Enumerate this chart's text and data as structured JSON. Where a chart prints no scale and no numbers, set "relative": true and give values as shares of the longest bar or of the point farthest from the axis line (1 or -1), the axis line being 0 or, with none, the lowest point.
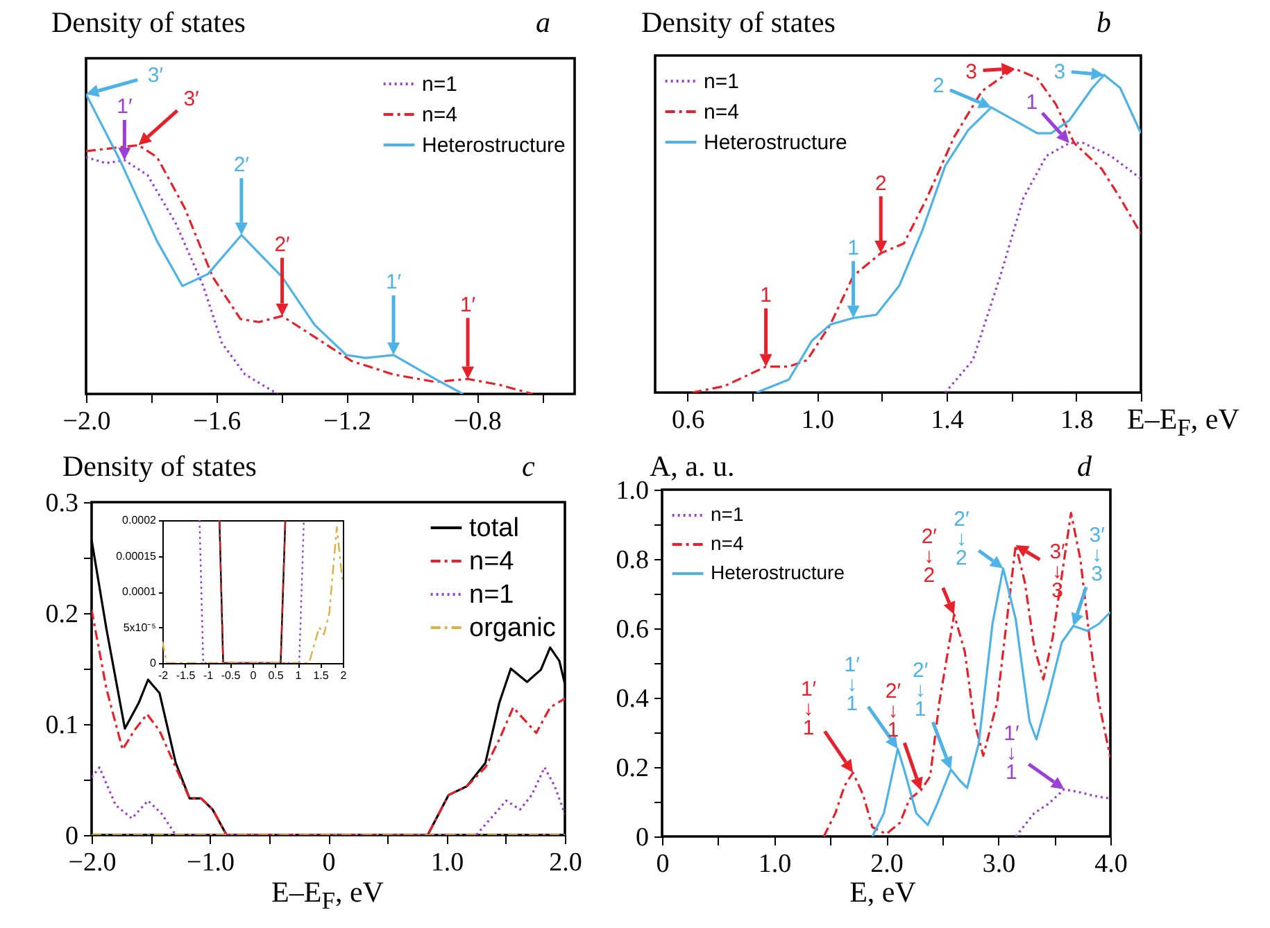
{
  "chart_data": [
    {
      "type": "line",
      "title": "a",
      "ylabel": "Density of states",
      "relative": true,
      "legend": "top right",
      "xlim": [
        -2,
        -0.5
      ],
      "xticks": [
        {
          "value": -2,
          "label": "−2.0"
        },
        {
          "value": -1.8,
          "label": null
        },
        {
          "value": -1.6,
          "label": "−1.6"
        },
        {
          "value": -1.4,
          "label": null
        },
        {
          "value": -1.2,
          "label": "−1.2"
        },
        {
          "value": -1,
          "label": null
        },
        {
          "value": -0.8,
          "label": "−0.8"
        },
        {
          "value": -0.6,
          "label": null
        }
      ],
      "series": [
        {
          "name": "n=1",
          "color": "#9b3fd6",
          "line_style": "dotted",
          "x": [
            -2.0,
            -1.939,
            -1.882,
            -1.811,
            -1.725,
            -1.64,
            -1.583,
            -1.512,
            -1.412
          ],
          "values": [
            0.79,
            0.77,
            0.78,
            0.73,
            0.57,
            0.36,
            0.17,
            0.065,
            0
          ]
        },
        {
          "name": "n=4",
          "color": "#e8202a",
          "line_style": "dashed",
          "x": [
            -2.0,
            -1.839,
            -1.782,
            -1.697,
            -1.611,
            -1.526,
            -1.469,
            -1.398,
            -1.298,
            -1.185,
            -1.056,
            -0.928,
            -0.828,
            -0.729,
            -0.629
          ],
          "values": [
            0.81,
            0.83,
            0.79,
            0.62,
            0.39,
            0.25,
            0.24,
            0.26,
            0.19,
            0.11,
            0.065,
            0.04,
            0.05,
            0.03,
            0
          ]
        },
        {
          "name": "Heterostructure",
          "color": "#4db3e6",
          "line_style": "solid",
          "x": [
            -2.0,
            -1.896,
            -1.782,
            -1.704,
            -1.626,
            -1.523,
            -1.398,
            -1.298,
            -1.201,
            -1.142,
            -1.056,
            -0.928,
            -0.843
          ],
          "values": [
            1.0,
            0.78,
            0.51,
            0.36,
            0.4,
            0.53,
            0.39,
            0.23,
            0.13,
            0.12,
            0.13,
            0.05,
            0
          ]
        }
      ],
      "annotations": [
        {
          "text": "3′",
          "x": -2.0,
          "y": 1.0
        },
        {
          "text": "1′",
          "x": -1.882,
          "y": 0.78
        },
        {
          "text": "3′",
          "x": -1.839,
          "y": 0.83
        },
        {
          "text": "2′",
          "x": -1.523,
          "y": 0.53
        },
        {
          "text": "2′",
          "x": -1.398,
          "y": 0.26
        },
        {
          "text": "1′",
          "x": -1.056,
          "y": 0.13
        },
        {
          "text": "1′",
          "x": -0.828,
          "y": 0.05
        }
      ]
    },
    {
      "type": "line",
      "title": "b",
      "ylabel": "Density of states",
      "xlabel": "E–E$_{F}$, eV",
      "relative": true,
      "legend": "top left",
      "xlim": [
        0.5,
        2.0
      ],
      "xticks": [
        {
          "value": 0.6,
          "label": "0.6"
        },
        {
          "value": 0.8,
          "label": null
        },
        {
          "value": 1,
          "label": "1.0"
        },
        {
          "value": 1.2,
          "label": null
        },
        {
          "value": 1.4,
          "label": "1.4"
        },
        {
          "value": 1.6,
          "label": null
        },
        {
          "value": 1.8,
          "label": "1.8"
        },
        {
          "value": 2,
          "label": null
        }
      ],
      "series": [
        {
          "name": "n=1",
          "color": "#9b3fd6",
          "line_style": "dotted",
          "x": [
            1.396,
            1.481,
            1.566,
            1.637,
            1.708,
            1.779,
            1.822,
            1.907,
            2.0
          ],
          "values": [
            0,
            0.1,
            0.36,
            0.6,
            0.73,
            0.77,
            0.77,
            0.73,
            0.66
          ]
        },
        {
          "name": "n=4",
          "color": "#e8202a",
          "line_style": "dashed",
          "x": [
            0.614,
            0.714,
            0.842,
            0.913,
            0.969,
            1.041,
            1.112,
            1.197,
            1.268,
            1.339,
            1.424,
            1.509,
            1.609,
            1.68,
            1.737,
            1.794,
            1.879,
            1.936,
            2.0
          ],
          "values": [
            0,
            0.02,
            0.08,
            0.08,
            0.1,
            0.21,
            0.36,
            0.43,
            0.46,
            0.6,
            0.79,
            0.93,
            1.0,
            0.97,
            0.89,
            0.77,
            0.69,
            0.6,
            0.49
          ]
        },
        {
          "name": "Heterostructure",
          "color": "#4db3e6",
          "line_style": "solid",
          "x": [
            0.813,
            0.913,
            0.984,
            1.041,
            1.112,
            1.183,
            1.254,
            1.325,
            1.396,
            1.467,
            1.538,
            1.609,
            1.68,
            1.723,
            1.779,
            1.85,
            1.886,
            1.936,
            2.0
          ],
          "values": [
            0,
            0.04,
            0.16,
            0.21,
            0.23,
            0.24,
            0.33,
            0.5,
            0.7,
            0.81,
            0.88,
            0.84,
            0.8,
            0.8,
            0.84,
            0.94,
            0.98,
            0.94,
            0.8
          ]
        }
      ],
      "annotations": [
        {
          "text": "1",
          "x": 0.842,
          "y": 0.08
        },
        {
          "text": "1",
          "x": 1.112,
          "y": 0.23
        },
        {
          "text": "2",
          "x": 1.197,
          "y": 0.43
        },
        {
          "text": "2",
          "x": 1.538,
          "y": 0.88
        },
        {
          "text": "3",
          "x": 1.609,
          "y": 1.0
        },
        {
          "text": "1",
          "x": 1.779,
          "y": 0.77
        },
        {
          "text": "3",
          "x": 1.886,
          "y": 0.98
        }
      ]
    },
    {
      "type": "line",
      "title": "c",
      "ylabel": "Density of states",
      "xlabel": "E–E$_{F}$, eV",
      "legend": "top right",
      "xlim": [
        -2,
        2
      ],
      "xticks": [
        {
          "value": -2,
          "label": "−2.0"
        },
        {
          "value": -1.5,
          "label": null
        },
        {
          "value": -1,
          "label": "−1.0"
        },
        {
          "value": -0.5,
          "label": null
        },
        0,
        {
          "value": 0.5,
          "label": null
        },
        {
          "value": 1,
          "label": "1.0"
        },
        {
          "value": 1.5,
          "label": null
        },
        {
          "value": 2,
          "label": "2.0"
        }
      ],
      "ylim": [
        0,
        0.3
      ],
      "yticks": [
        0,
        {
          "value": 0.05,
          "label": null
        },
        0.1,
        {
          "value": 0.15,
          "label": null
        },
        0.2,
        {
          "value": 0.25,
          "label": null
        },
        0.3
      ],
      "series": [
        {
          "name": "total",
          "color": "#000000",
          "line_style": "solid",
          "x": [
            -2.0,
            -1.875,
            -1.719,
            -1.602,
            -1.523,
            -1.426,
            -1.289,
            -1.172,
            -1.074,
            -0.977,
            -0.859,
            0.84,
            1.016,
            1.172,
            1.328,
            1.445,
            1.543,
            1.68,
            1.797,
            1.875,
            1.953,
            2.0
          ],
          "values": [
            0.266,
            0.186,
            0.096,
            0.119,
            0.14,
            0.128,
            0.065,
            0.033,
            0.033,
            0.023,
            0,
            0,
            0.036,
            0.044,
            0.065,
            0.119,
            0.15,
            0.138,
            0.149,
            0.169,
            0.157,
            0.136
          ]
        },
        {
          "name": "n=4",
          "color": "#e8202a",
          "line_style": "dashed",
          "x": [
            -2.0,
            -1.875,
            -1.738,
            -1.641,
            -1.531,
            -1.426,
            -1.289,
            -1.172,
            -1.074,
            -0.977,
            -0.859,
            0.84,
            1.016,
            1.172,
            1.328,
            1.445,
            1.563,
            1.758,
            1.875,
            2.0
          ],
          "values": [
            0.203,
            0.132,
            0.077,
            0.094,
            0.109,
            0.094,
            0.061,
            0.033,
            0.033,
            0.023,
            0,
            0,
            0.036,
            0.044,
            0.061,
            0.086,
            0.115,
            0.092,
            0.115,
            0.123
          ]
        },
        {
          "name": "n=1",
          "color": "#9b3fd6",
          "line_style": "dotted",
          "x": [
            -2.0,
            -1.934,
            -1.797,
            -1.66,
            -1.523,
            -1.406,
            -1.289,
            1.25,
            1.406,
            1.504,
            1.621,
            1.719,
            1.828,
            1.914,
            2.0
          ],
          "values": [
            0.052,
            0.061,
            0.027,
            0.015,
            0.031,
            0.019,
            0,
            0,
            0.019,
            0.031,
            0.023,
            0.036,
            0.061,
            0.044,
            0.019
          ]
        },
        {
          "name": "organic",
          "color": "#e0b040",
          "line_style": "dashed",
          "x": [
            -2,
            2
          ],
          "values": [
            0,
            0
          ]
        }
      ]
    },
    {
      "type": "line",
      "xlim": [
        -2,
        2
      ],
      "xticks": [
        -2,
        -1.5,
        -1,
        -0.5,
        0,
        0.5,
        1,
        1.5,
        2
      ],
      "ylim": [
        0,
        0.0002
      ],
      "yticks": [
        0,
        {
          "value": 5e-05,
          "label": "5x10⁻⁵"
        },
        0.0001,
        0.00015,
        0.0002
      ],
      "series": [
        {
          "color": "#000000",
          "line_style": "solid",
          "x": [
            -0.735,
            -0.653,
            0.622,
            0.725
          ],
          "values": [
            0.0002,
            0,
            0,
            0.0002
          ]
        },
        {
          "color": "#c02020",
          "line_style": "dashed",
          "x": [
            -0.735,
            -0.653,
            0.622,
            0.725
          ],
          "values": [
            0.0002,
            0,
            0,
            0.0002
          ]
        },
        {
          "color": "#9b3fd6",
          "line_style": "dotted",
          "x": [
            -1.177,
            -1.095,
            1.033,
            1.136
          ],
          "values": [
            0.0002,
            0,
            0,
            0.0002
          ]
        },
        {
          "color": "#e0b040",
          "line_style": "dashed",
          "x": [
            -2,
            -1.9,
            1.25,
            1.476,
            1.58,
            1.7,
            1.866,
            2.0
          ],
          "values": [
            3e-05,
            0,
            0,
            5e-05,
            4e-05,
            7e-05,
            0.00019,
            0.00011
          ]
        }
      ]
    },
    {
      "type": "line",
      "title": "d",
      "ylabel": "A, a. u.",
      "xlabel": "E, eV",
      "legend": "top left",
      "xlim": [
        0,
        4
      ],
      "xticks": [
        0,
        {
          "value": 0.5,
          "label": null
        },
        {
          "value": 1,
          "label": "1.0"
        },
        {
          "value": 1.5,
          "label": null
        },
        {
          "value": 2,
          "label": "2.0"
        },
        {
          "value": 2.5,
          "label": null
        },
        {
          "value": 3,
          "label": "3.0"
        },
        {
          "value": 3.5,
          "label": null
        },
        {
          "value": 4,
          "label": "4.0"
        }
      ],
      "ylim": [
        0,
        1
      ],
      "yticks": [
        0,
        {
          "value": 0.1,
          "label": null
        },
        0.2,
        {
          "value": 0.3,
          "label": null
        },
        0.4,
        {
          "value": 0.5,
          "label": null
        },
        0.6,
        {
          "value": 0.7,
          "label": null
        },
        0.8,
        {
          "value": 0.9,
          "label": null
        },
        {
          "value": 1,
          "label": "1.0"
        }
      ],
      "series": [
        {
          "name": "n=1",
          "color": "#9b3fd6",
          "line_style": "dotted",
          "x": [
            3.155,
            3.32,
            3.443,
            3.588,
            3.732,
            3.856,
            4.0
          ],
          "values": [
            0,
            0.067,
            0.093,
            0.136,
            0.127,
            0.117,
            0.109
          ]
        },
        {
          "name": "n=4",
          "color": "#e8202a",
          "line_style": "dashed",
          "x": [
            1.443,
            1.546,
            1.63,
            1.703,
            1.794,
            1.876,
            2.0,
            2.124,
            2.206,
            2.309,
            2.392,
            2.474,
            2.606,
            2.701,
            2.784,
            2.866,
            2.99,
            3.155,
            3.237,
            3.32,
            3.402,
            3.485,
            3.649,
            3.732,
            3.814,
            3.897,
            4.0
          ],
          "values": [
            0,
            0.067,
            0.147,
            0.184,
            0.12,
            0.027,
            0.007,
            0.04,
            0.107,
            0.133,
            0.173,
            0.387,
            0.64,
            0.533,
            0.333,
            0.233,
            0.387,
            0.84,
            0.733,
            0.547,
            0.453,
            0.573,
            0.933,
            0.8,
            0.573,
            0.387,
            0.227
          ]
        },
        {
          "name": "Heterostructure",
          "color": "#4db3e6",
          "line_style": "solid",
          "x": [
            1.876,
            1.979,
            2.103,
            2.165,
            2.268,
            2.371,
            2.454,
            2.577,
            2.66,
            2.722,
            2.825,
            2.948,
            3.043,
            3.155,
            3.278,
            3.34,
            3.443,
            3.567,
            3.67,
            3.794,
            3.897,
            4.0
          ],
          "values": [
            0,
            0.067,
            0.253,
            0.187,
            0.067,
            0.033,
            0.093,
            0.193,
            0.16,
            0.14,
            0.267,
            0.613,
            0.773,
            0.627,
            0.333,
            0.28,
            0.4,
            0.56,
            0.607,
            0.593,
            0.613,
            0.647
          ]
        }
      ],
      "annotations": [
        {
          "text": "1′\n↓\n1",
          "x": 1.703,
          "y": 0.184
        },
        {
          "text": "1′\n↓\n1",
          "x": 2.103,
          "y": 0.253
        },
        {
          "text": "2′\n↓\n1",
          "x": 2.309,
          "y": 0.133
        },
        {
          "text": "2′\n↓\n1",
          "x": 2.577,
          "y": 0.193
        },
        {
          "text": "2′\n↓\n2",
          "x": 2.606,
          "y": 0.64
        },
        {
          "text": "2′\n↓\n2",
          "x": 3.043,
          "y": 0.773
        },
        {
          "text": "3′\n↓\n3",
          "x": 3.155,
          "y": 0.84
        },
        {
          "text": "3′\n↓\n3",
          "x": 3.67,
          "y": 0.607
        },
        {
          "text": "1′\n↓\n1",
          "x": 3.588,
          "y": 0.136
        }
      ]
    }
  ]
}
